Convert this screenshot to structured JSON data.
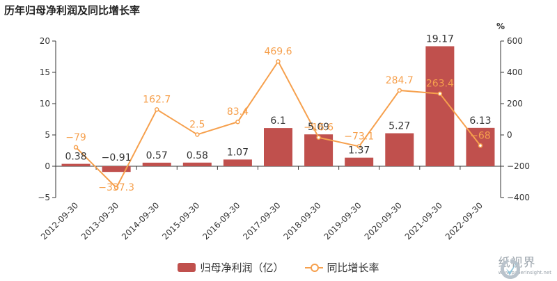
{
  "chart_data": {
    "type": "bar",
    "title": "历年归母净利润及同比增长率",
    "categories": [
      "2012-09-30",
      "2013-09-30",
      "2014-09-30",
      "2015-09-30",
      "2016-09-30",
      "2017-09-30",
      "2018-09-30",
      "2019-09-30",
      "2020-09-30",
      "2021-09-30",
      "2022-09-30"
    ],
    "series": [
      {
        "name": "归母净利润（亿）",
        "type": "bar",
        "axis": "left",
        "color": "#c0504d",
        "values": [
          0.38,
          -0.91,
          0.57,
          0.58,
          1.07,
          6.1,
          5.09,
          1.37,
          5.27,
          19.17,
          6.13
        ],
        "labels": [
          "0.38",
          "−0.91",
          "0.57",
          "0.58",
          "1.07",
          "6.1",
          "5.09",
          "1.37",
          "5.27",
          "19.17",
          "6.13"
        ]
      },
      {
        "name": "同比增长率",
        "type": "line",
        "axis": "right",
        "color": "#f6a04d",
        "values": [
          -79,
          -337.3,
          162.7,
          2.5,
          83.4,
          469.6,
          -16.6,
          -73.1,
          284.7,
          263.4,
          -68
        ],
        "labels": [
          "−79",
          "−337.3",
          "162.7",
          "2.5",
          "83.4",
          "469.6",
          "−16.6",
          "−73.1",
          "284.7",
          "263.4",
          "−68"
        ]
      }
    ],
    "y_left": {
      "min": -5,
      "max": 20,
      "ticks": [
        "−5",
        "0",
        "5",
        "10",
        "15",
        "20"
      ],
      "tick_values": [
        -5,
        0,
        5,
        10,
        15,
        20
      ]
    },
    "y_right": {
      "min": -400,
      "max": 600,
      "unit": "%",
      "ticks": [
        "−400",
        "−200",
        "0",
        "200",
        "400",
        "600"
      ],
      "tick_values": [
        -400,
        -200,
        0,
        200,
        400,
        600
      ]
    },
    "legend_position": "bottom",
    "grid": false
  },
  "watermark": {
    "name": "纸视界",
    "url": "www.paperinsight.net"
  }
}
